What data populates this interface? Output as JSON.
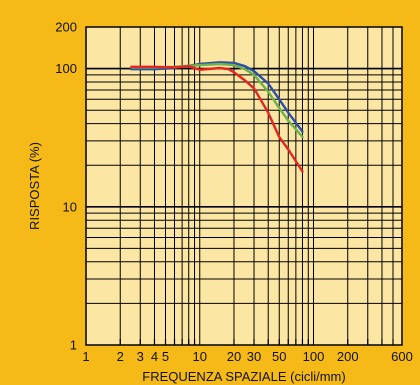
{
  "chart_data": {
    "type": "line",
    "xlabel": "FREQUENZA SPAZIALE (cicli/mm)",
    "ylabel": "RISPOSTA (%)",
    "x_scale": "log",
    "y_scale": "log",
    "xlim": [
      1,
      600
    ],
    "ylim": [
      1,
      200
    ],
    "x_ticks": [
      {
        "value": 1,
        "label": "1"
      },
      {
        "value": 2,
        "label": "2"
      },
      {
        "value": 3,
        "label": "3"
      },
      {
        "value": 4,
        "label": "4"
      },
      {
        "value": 5,
        "label": "5"
      },
      {
        "value": 10,
        "label": "10"
      },
      {
        "value": 20,
        "label": "20"
      },
      {
        "value": 30,
        "label": "30"
      },
      {
        "value": 50,
        "label": "50"
      },
      {
        "value": 100,
        "label": "100"
      },
      {
        "value": 200,
        "label": "200"
      },
      {
        "value": 600,
        "label": "600"
      }
    ],
    "y_ticks": [
      {
        "value": 1,
        "label": "1"
      },
      {
        "value": 10,
        "label": "10"
      },
      {
        "value": 100,
        "label": "100"
      },
      {
        "value": 200,
        "label": "200"
      }
    ],
    "series": [
      {
        "color": "#2B4FA8",
        "points": [
          [
            2.5,
            99
          ],
          [
            4,
            99
          ],
          [
            6,
            101
          ],
          [
            10,
            108
          ],
          [
            15,
            111
          ],
          [
            20,
            110
          ],
          [
            25,
            104
          ],
          [
            30,
            96
          ],
          [
            40,
            78
          ],
          [
            50,
            60
          ],
          [
            60,
            48
          ],
          [
            80,
            35
          ]
        ]
      },
      {
        "color": "#6DB24A",
        "points": [
          [
            2.5,
            102
          ],
          [
            4,
            102
          ],
          [
            6,
            103
          ],
          [
            10,
            106
          ],
          [
            15,
            108
          ],
          [
            20,
            106
          ],
          [
            25,
            99
          ],
          [
            30,
            90
          ],
          [
            40,
            68
          ],
          [
            50,
            52
          ],
          [
            60,
            42
          ],
          [
            80,
            32
          ]
        ]
      },
      {
        "color": "#E52520",
        "points": [
          [
            2.5,
            103
          ],
          [
            4,
            103
          ],
          [
            6,
            102
          ],
          [
            8,
            104
          ],
          [
            10,
            98
          ],
          [
            15,
            101
          ],
          [
            18,
            99
          ],
          [
            20,
            94
          ],
          [
            25,
            82
          ],
          [
            30,
            72
          ],
          [
            40,
            48
          ],
          [
            50,
            32
          ],
          [
            60,
            26
          ],
          [
            80,
            18
          ]
        ]
      }
    ],
    "grid": true
  },
  "colors": {
    "background": "#F5BA17",
    "plot_background": "#FCE6A4",
    "grid": "#000000"
  }
}
